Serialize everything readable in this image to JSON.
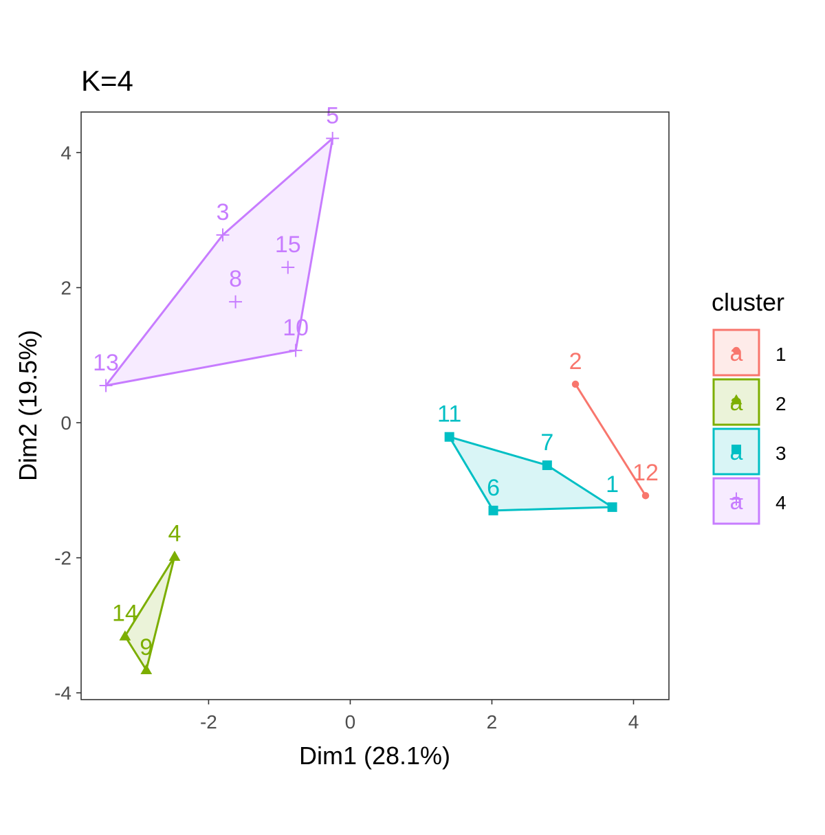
{
  "chart_data": {
    "type": "scatter",
    "title": "K=4",
    "xlabel": "Dim1 (28.1%)",
    "ylabel": "Dim2 (19.5%)",
    "xlim": [
      -3.8,
      4.5
    ],
    "ylim": [
      -4.1,
      4.6
    ],
    "xticks": [
      -2,
      0,
      2,
      4
    ],
    "yticks": [
      -4,
      -2,
      0,
      2,
      4
    ],
    "grid": false,
    "legend": {
      "title": "cluster",
      "position": "right",
      "key_glyph": "a"
    },
    "series": [
      {
        "name": "1",
        "color": "#F8766D",
        "shape": "circle",
        "points": [
          {
            "label": "2",
            "x": 3.18,
            "y": 0.57
          },
          {
            "label": "12",
            "x": 4.17,
            "y": -1.08
          }
        ],
        "hull": [
          "2",
          "12"
        ]
      },
      {
        "name": "2",
        "color": "#7CAE00",
        "shape": "triangle",
        "points": [
          {
            "label": "4",
            "x": -2.48,
            "y": -1.98
          },
          {
            "label": "14",
            "x": -3.18,
            "y": -3.16
          },
          {
            "label": "9",
            "x": -2.88,
            "y": -3.66
          }
        ],
        "hull": [
          "4",
          "14",
          "9"
        ]
      },
      {
        "name": "3",
        "color": "#00BFC4",
        "shape": "square",
        "points": [
          {
            "label": "11",
            "x": 1.4,
            "y": -0.21
          },
          {
            "label": "7",
            "x": 2.78,
            "y": -0.63
          },
          {
            "label": "6",
            "x": 2.02,
            "y": -1.3
          },
          {
            "label": "1",
            "x": 3.7,
            "y": -1.25
          }
        ],
        "hull": [
          "11",
          "7",
          "1",
          "6"
        ]
      },
      {
        "name": "4",
        "color": "#C77CFF",
        "shape": "plus",
        "points": [
          {
            "label": "5",
            "x": -0.25,
            "y": 4.21
          },
          {
            "label": "3",
            "x": -1.8,
            "y": 2.78
          },
          {
            "label": "15",
            "x": -0.88,
            "y": 2.3
          },
          {
            "label": "8",
            "x": -1.62,
            "y": 1.79
          },
          {
            "label": "10",
            "x": -0.77,
            "y": 1.07
          },
          {
            "label": "13",
            "x": -3.45,
            "y": 0.55
          }
        ],
        "hull": [
          "5",
          "10",
          "13",
          "3"
        ]
      }
    ]
  }
}
